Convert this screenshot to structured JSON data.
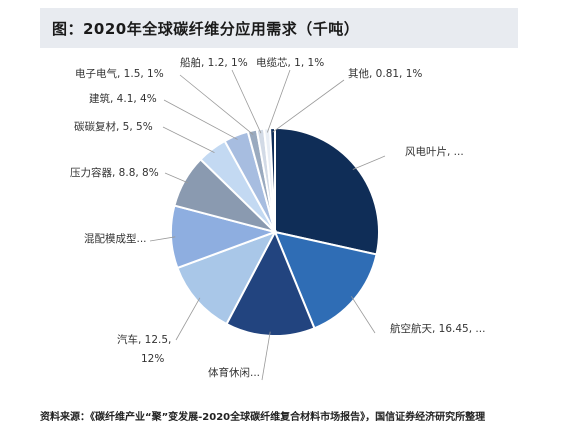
{
  "header": {
    "title": "图：2020年全球碳纤维分应用需求（千吨）"
  },
  "source": "资料来源：《碳纤维产业“聚”变发展-2020全球碳纤维复合材料市场报告》，国信证券经济研究所整理",
  "colors": {
    "header_bg": "#e8ebf0",
    "slices": [
      "#0f2d57",
      "#2f6db5",
      "#22447f",
      "#a9c7e8",
      "#8eaee0",
      "#8a9ab0",
      "#c3d9f2",
      "#a7bde0",
      "#9aaabf",
      "#d2dae6",
      "#e9eef5"
    ]
  },
  "chart_data": {
    "type": "pie",
    "title": "",
    "start": "12 o'clock, clockwise",
    "slices": [
      {
        "label": "风电叶片, ...",
        "value": 30.5
      },
      {
        "label": "航空航天, 16.45, ...",
        "value": 16.45
      },
      {
        "label": "体育休闲...",
        "value": 14.9
      },
      {
        "label": "汽车, 12.5, 12%",
        "value": 12.5
      },
      {
        "label": "混配模成型...",
        "value": 10.4
      },
      {
        "label": "压力容器, 8.8, 8%",
        "value": 8.8
      },
      {
        "label": "碳碳复材, 5, 5%",
        "value": 5
      },
      {
        "label": "建筑, 4.1, 4%",
        "value": 4.1
      },
      {
        "label": "电子电气, 1.5, 1%",
        "value": 1.5
      },
      {
        "label": "船舶, 1.2, 1%",
        "value": 1.2
      },
      {
        "label": "电缆芯, 1, 1%",
        "value": 1
      },
      {
        "label": "其他, 0.81, 1%",
        "value": 0.81
      }
    ]
  }
}
